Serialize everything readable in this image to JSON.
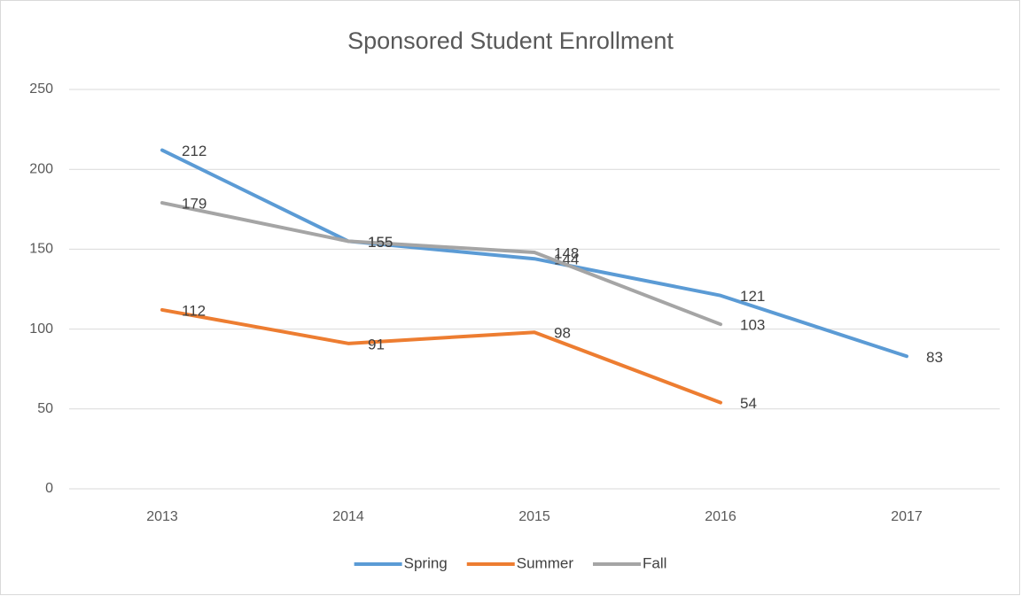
{
  "chart_data": {
    "type": "line",
    "title": "Sponsored Student Enrollment",
    "categories": [
      "2013",
      "2014",
      "2015",
      "2016",
      "2017"
    ],
    "series": [
      {
        "name": "Spring",
        "color": "#5b9bd5",
        "values": [
          212,
          155,
          144,
          121,
          83
        ]
      },
      {
        "name": "Summer",
        "color": "#ed7d31",
        "values": [
          112,
          91,
          98,
          54,
          null
        ]
      },
      {
        "name": "Fall",
        "color": "#a5a5a5",
        "values": [
          179,
          155,
          148,
          103,
          null
        ]
      }
    ],
    "ylim": [
      0,
      250
    ],
    "yticks": [
      0,
      50,
      100,
      150,
      200,
      250
    ],
    "grid": true,
    "legend": "bottom"
  }
}
